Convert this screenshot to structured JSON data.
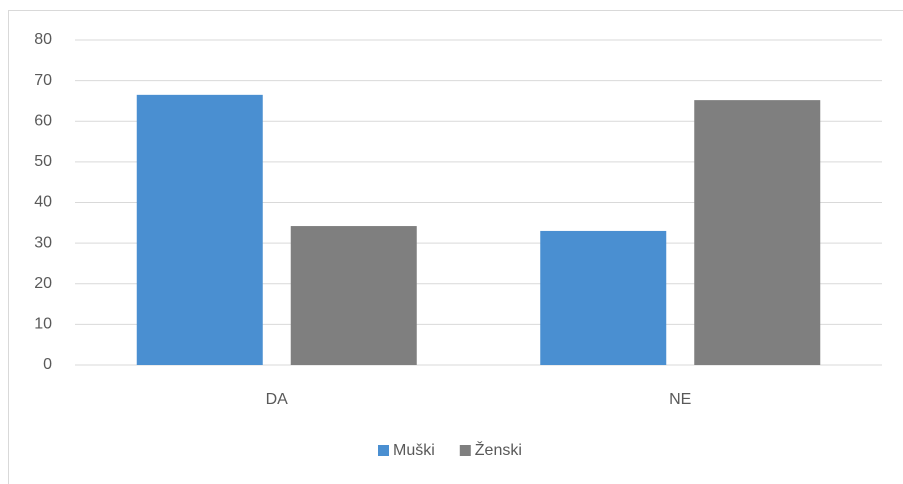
{
  "chart_data": {
    "type": "bar",
    "categories": [
      "DA",
      "NE"
    ],
    "series": [
      {
        "name": "Muški",
        "color": "#4a8fd1",
        "values": [
          66.5,
          33
        ]
      },
      {
        "name": "Ženski",
        "color": "#7f7f7f",
        "values": [
          34.2,
          65.2
        ]
      }
    ],
    "ylim": [
      0,
      80
    ],
    "yticks": [
      0,
      10,
      20,
      30,
      40,
      50,
      60,
      70,
      80
    ],
    "grid": true,
    "legend": "bottom"
  }
}
